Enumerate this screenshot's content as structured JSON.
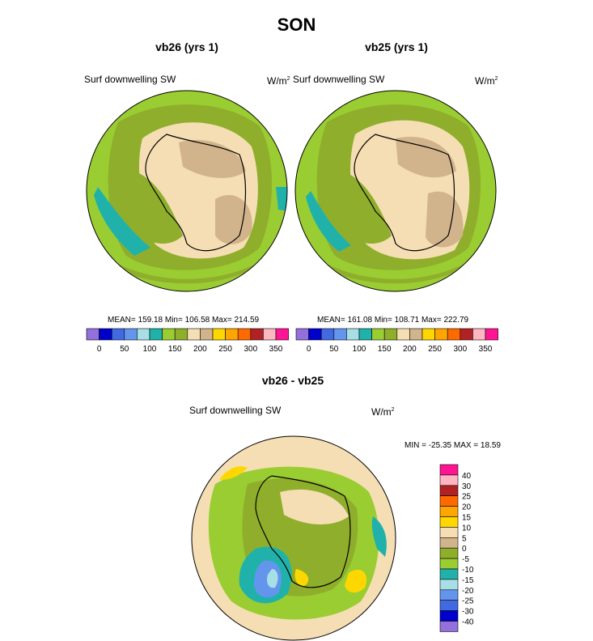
{
  "title": "SON",
  "colors": {
    "abs_palette": [
      "#9370db",
      "#0000cd",
      "#4169e1",
      "#6495ed",
      "#a8dfe6",
      "#20b2aa",
      "#9acd32",
      "#8fae2c",
      "#f5deb3",
      "#d2b48c",
      "#ffd700",
      "#ffa500",
      "#ff6a00",
      "#b22222",
      "#ffb6c1",
      "#ff1493"
    ],
    "diff_palette": [
      "#9370db",
      "#0000cd",
      "#4169e1",
      "#6495ed",
      "#a8dfe6",
      "#20b2aa",
      "#9acd32",
      "#8fae2c",
      "#d2b48c",
      "#f5deb3",
      "#ffd700",
      "#ffa500",
      "#ff6a00",
      "#b22222",
      "#ffb6c1",
      "#ff1493"
    ]
  },
  "panels": [
    {
      "subtitle": "vb26 (yrs 1)",
      "variable": "Surf downwelling SW",
      "units_base": "W/m",
      "units_exp": "2",
      "stats": "MEAN= 159.18  Min= 106.58  Max= 214.59"
    },
    {
      "subtitle": "vb25 (yrs 1)",
      "variable": "Surf downwelling SW",
      "units_base": "W/m",
      "units_exp": "2",
      "stats": "MEAN= 161.08  Min= 108.71  Max= 222.79"
    },
    {
      "subtitle": "vb26 - vb25",
      "variable": "Surf downwelling SW",
      "units_base": "W/m",
      "units_exp": "2",
      "stats": "MIN = -25.35 MAX =  18.59"
    }
  ],
  "chart_data": [
    {
      "type": "heatmap",
      "projection": "south polar stereographic",
      "subtitle": "vb26 (yrs 1)",
      "variable": "Surf downwelling SW",
      "units": "W/m2",
      "mean": 159.18,
      "min": 106.58,
      "max": 214.59,
      "colorbar_levels": [
        0,
        25,
        50,
        75,
        100,
        125,
        150,
        175,
        200,
        225,
        250,
        275,
        300,
        325,
        350
      ],
      "colorbar_tick_labels": [
        "0",
        "50",
        "100",
        "150",
        "200",
        "250",
        "300",
        "350"
      ]
    },
    {
      "type": "heatmap",
      "projection": "south polar stereographic",
      "subtitle": "vb25 (yrs 1)",
      "variable": "Surf downwelling SW",
      "units": "W/m2",
      "mean": 161.08,
      "min": 108.71,
      "max": 222.79,
      "colorbar_levels": [
        0,
        25,
        50,
        75,
        100,
        125,
        150,
        175,
        200,
        225,
        250,
        275,
        300,
        325,
        350
      ],
      "colorbar_tick_labels": [
        "0",
        "50",
        "100",
        "150",
        "200",
        "250",
        "300",
        "350"
      ]
    },
    {
      "type": "heatmap",
      "projection": "south polar stereographic",
      "subtitle": "vb26 - vb25",
      "variable": "Surf downwelling SW",
      "units": "W/m2",
      "min": -25.35,
      "max": 18.59,
      "colorbar_levels": [
        -40,
        -30,
        -25,
        -20,
        -15,
        -10,
        -5,
        0,
        5,
        10,
        15,
        20,
        25,
        30,
        40
      ],
      "colorbar_tick_labels": [
        "40",
        "30",
        "25",
        "20",
        "15",
        "10",
        "5",
        "0",
        "-5",
        "-10",
        "-15",
        "-20",
        "-25",
        "-30",
        "-40"
      ],
      "colorbar_orientation": "vertical"
    }
  ]
}
